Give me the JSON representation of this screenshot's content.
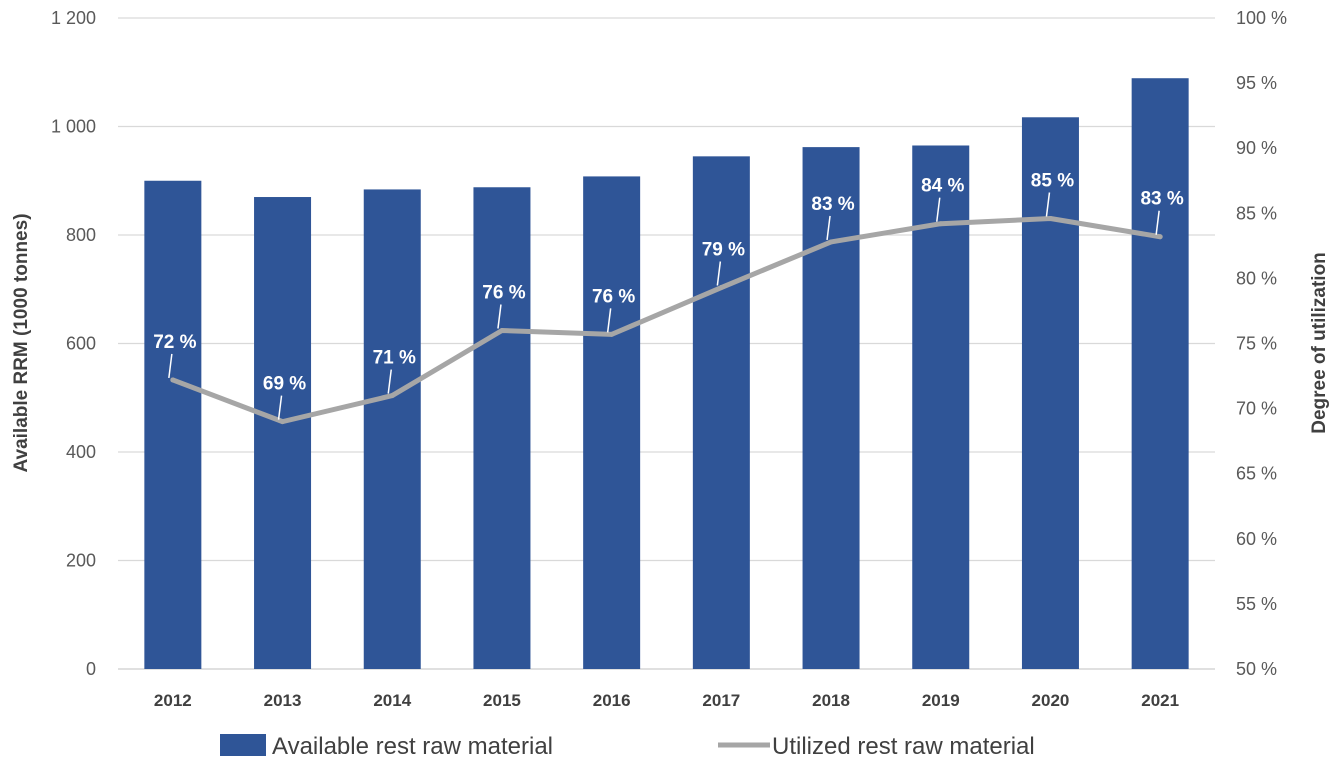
{
  "chart_data": {
    "type": "bar",
    "categories": [
      "2012",
      "2013",
      "2014",
      "2015",
      "2016",
      "2017",
      "2018",
      "2019",
      "2020",
      "2021"
    ],
    "series": [
      {
        "name": "Available rest raw material",
        "type": "bar",
        "axis": "left",
        "color": "#2F5597",
        "values": [
          900,
          870,
          884,
          888,
          908,
          945,
          962,
          965,
          1017,
          1089
        ]
      },
      {
        "name": "Utilized rest raw material",
        "type": "line",
        "axis": "right",
        "color": "#A6A6A6",
        "values": [
          72.2,
          69.0,
          71.0,
          76.0,
          75.7,
          79.3,
          82.8,
          84.2,
          84.6,
          83.2
        ],
        "data_labels": [
          "72 %",
          "69 %",
          "71 %",
          "76 %",
          "76 %",
          "79 %",
          "83 %",
          "84 %",
          "85 %",
          "83 %"
        ]
      }
    ],
    "ylabel": "Available RRM (1000 tonnes)",
    "y2label": "Degree of utilization",
    "ylim": [
      0,
      1200
    ],
    "y2lim": [
      50,
      100
    ],
    "yticks": [
      "0",
      "200",
      "400",
      "600",
      "800",
      "1 000",
      "1 200"
    ],
    "y2ticks": [
      "50 %",
      "55 %",
      "60 %",
      "65 %",
      "70 %",
      "75 %",
      "80 %",
      "85 %",
      "90 %",
      "95 %",
      "100 %"
    ],
    "grid": true,
    "legend_position": "bottom"
  }
}
